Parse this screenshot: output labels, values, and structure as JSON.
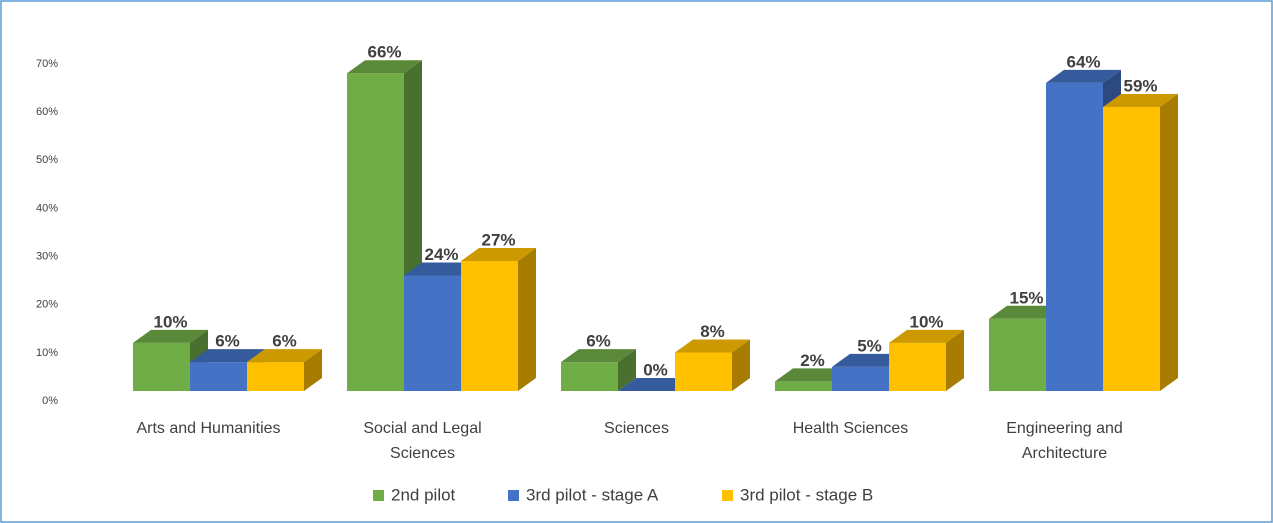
{
  "chart_data": {
    "type": "bar3d",
    "categories": [
      "Arts and Humanities",
      "Social and Legal Sciences",
      "Sciences",
      "Health Sciences",
      "Engineering and Architecture"
    ],
    "series": [
      {
        "name": "2nd pilot",
        "color": "#70ad47",
        "values": [
          10,
          66,
          6,
          2,
          15
        ],
        "value_labels": [
          "10%",
          "66%",
          "6%",
          "2%",
          "15%"
        ]
      },
      {
        "name": "3rd pilot - stage A",
        "color": "#4472c4",
        "values": [
          6,
          24,
          0,
          5,
          64
        ],
        "value_labels": [
          "6%",
          "24%",
          "0%",
          "5%",
          "64%"
        ]
      },
      {
        "name": "3rd pilot - stage B",
        "color": "#ffc000",
        "values": [
          6,
          27,
          8,
          10,
          59
        ],
        "value_labels": [
          "6%",
          "27%",
          "8%",
          "10%",
          "59%"
        ]
      }
    ],
    "ylim": [
      0,
      70
    ],
    "yticks": [
      {
        "value": 0,
        "label": "0%"
      },
      {
        "value": 10,
        "label": "10%"
      },
      {
        "value": 20,
        "label": "20%"
      },
      {
        "value": 30,
        "label": "30%"
      },
      {
        "value": 40,
        "label": "40%"
      },
      {
        "value": 50,
        "label": "50%"
      },
      {
        "value": 60,
        "label": "60%"
      },
      {
        "value": 70,
        "label": "70%"
      }
    ],
    "legend": "bottom"
  }
}
